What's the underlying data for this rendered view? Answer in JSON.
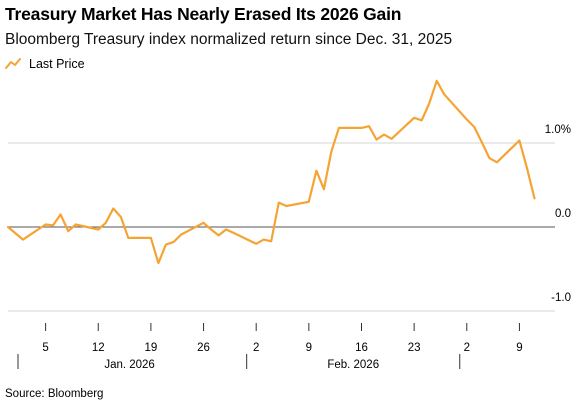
{
  "chart_data": {
    "type": "line",
    "title": "Treasury Market Has Nearly Erased Its 2026 Gain",
    "subtitle": "Bloomberg Treasury index normalized return since Dec. 31, 2025",
    "source": "Source: Bloomberg",
    "legend": {
      "placement": "top-left",
      "entries": [
        "Last Price"
      ]
    },
    "ylim": [
      -1.0,
      1.0
    ],
    "yticks": [
      {
        "value": 1.0,
        "label": "1.0%"
      },
      {
        "value": 0.0,
        "label": "0.0"
      },
      {
        "value": -1.0,
        "label": "-1.0"
      }
    ],
    "xlim": [
      "2025-12-31",
      "2026-03-12"
    ],
    "xticks": [
      {
        "date": "2026-01-05",
        "label": "5"
      },
      {
        "date": "2026-01-12",
        "label": "12"
      },
      {
        "date": "2026-01-19",
        "label": "19"
      },
      {
        "date": "2026-01-26",
        "label": "26"
      },
      {
        "date": "2026-02-02",
        "label": "2"
      },
      {
        "date": "2026-02-09",
        "label": "9"
      },
      {
        "date": "2026-02-16",
        "label": "16"
      },
      {
        "date": "2026-02-23",
        "label": "23"
      },
      {
        "date": "2026-03-02",
        "label": "2"
      },
      {
        "date": "2026-03-09",
        "label": "9"
      }
    ],
    "month_labels": [
      {
        "label": "Jan. 2026",
        "start": "2025-12-31",
        "end": "2026-01-31"
      },
      {
        "label": "Feb. 2026",
        "start": "2026-02-01",
        "end": "2026-02-28"
      }
    ],
    "grid": true,
    "color": "#f5a433",
    "series": [
      {
        "name": "Last Price",
        "points": [
          [
            "2025-12-31",
            0.0
          ],
          [
            "2026-01-02",
            -0.15
          ],
          [
            "2026-01-05",
            0.03
          ],
          [
            "2026-01-06",
            0.02
          ],
          [
            "2026-01-07",
            0.15
          ],
          [
            "2026-01-08",
            -0.05
          ],
          [
            "2026-01-09",
            0.03
          ],
          [
            "2026-01-12",
            -0.03
          ],
          [
            "2026-01-13",
            0.05
          ],
          [
            "2026-01-14",
            0.22
          ],
          [
            "2026-01-15",
            0.12
          ],
          [
            "2026-01-16",
            -0.13
          ],
          [
            "2026-01-19",
            -0.13
          ],
          [
            "2026-01-20",
            -0.43
          ],
          [
            "2026-01-21",
            -0.21
          ],
          [
            "2026-01-22",
            -0.18
          ],
          [
            "2026-01-23",
            -0.09
          ],
          [
            "2026-01-26",
            0.05
          ],
          [
            "2026-01-27",
            -0.03
          ],
          [
            "2026-01-28",
            -0.1
          ],
          [
            "2026-01-29",
            -0.03
          ],
          [
            "2026-01-30",
            -0.07
          ],
          [
            "2026-02-02",
            -0.2
          ],
          [
            "2026-02-03",
            -0.15
          ],
          [
            "2026-02-04",
            -0.17
          ],
          [
            "2026-02-05",
            0.29
          ],
          [
            "2026-02-06",
            0.25
          ],
          [
            "2026-02-09",
            0.3
          ],
          [
            "2026-02-10",
            0.67
          ],
          [
            "2026-02-11",
            0.45
          ],
          [
            "2026-02-12",
            0.9
          ],
          [
            "2026-02-13",
            1.18
          ],
          [
            "2026-02-16",
            1.18
          ],
          [
            "2026-02-17",
            1.2
          ],
          [
            "2026-02-18",
            1.04
          ],
          [
            "2026-02-19",
            1.1
          ],
          [
            "2026-02-20",
            1.05
          ],
          [
            "2026-02-23",
            1.3
          ],
          [
            "2026-02-24",
            1.27
          ],
          [
            "2026-02-25",
            1.47
          ],
          [
            "2026-02-26",
            1.74
          ],
          [
            "2026-02-27",
            1.58
          ],
          [
            "2026-03-02",
            1.28
          ],
          [
            "2026-03-03",
            1.19
          ],
          [
            "2026-03-04",
            1.01
          ],
          [
            "2026-03-05",
            0.82
          ],
          [
            "2026-03-06",
            0.77
          ],
          [
            "2026-03-09",
            1.03
          ],
          [
            "2026-03-10",
            0.7
          ],
          [
            "2026-03-11",
            0.34
          ]
        ]
      }
    ]
  }
}
